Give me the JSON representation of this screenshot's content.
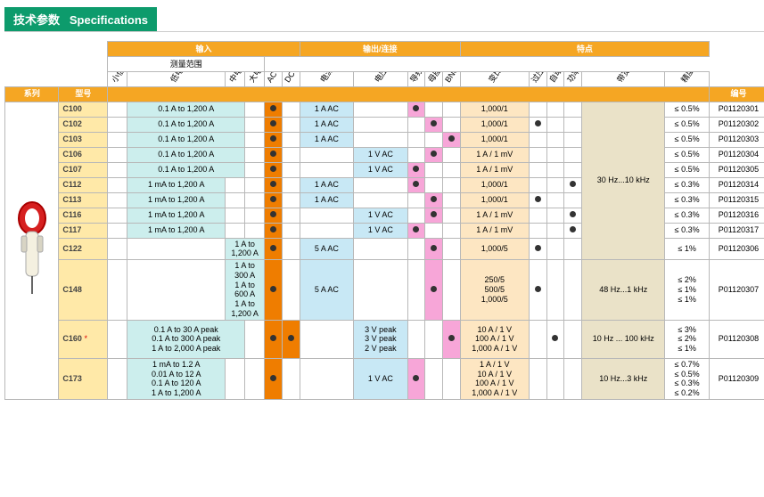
{
  "header": {
    "cn": "技术参数",
    "en": "Specifications"
  },
  "groups": {
    "input": "输入",
    "range": "测量范围",
    "output": "输出/连接",
    "features": "特点"
  },
  "diagHeaders": [
    "小信号电流",
    "低电流",
    "中电流",
    "大电流",
    "AC",
    "DC",
    "电流",
    "电压",
    "导线+安全插头 φ4mm",
    "母座 φ4mm",
    "BNC接头",
    "变比",
    "过压输出保护",
    "自动归零",
    "功率测量",
    "带宽",
    "精度"
  ],
  "rowHeaders": {
    "series": "系列",
    "model": "型号",
    "code": "编号"
  },
  "rows": [
    {
      "model": "C100",
      "range": "0.1 A to 1,200 A",
      "rc": 2,
      "ac": 1,
      "dc": 0,
      "cur": "1 A AC",
      "volt": "",
      "p1": 1,
      "p2": 0,
      "p3": 0,
      "ratio": "1,000/1",
      "ov": 0,
      "az": 0,
      "pw": 0,
      "band": "",
      "acc": "≤ 0.5%",
      "code": "P01120301"
    },
    {
      "model": "C102",
      "range": "0.1 A to 1,200 A",
      "rc": 2,
      "ac": 1,
      "dc": 0,
      "cur": "1 A AC",
      "volt": "",
      "p1": 0,
      "p2": 1,
      "p3": 0,
      "ratio": "1,000/1",
      "ov": 1,
      "az": 0,
      "pw": 0,
      "band": "",
      "acc": "≤ 0.5%",
      "code": "P01120302"
    },
    {
      "model": "C103",
      "range": "0.1 A to 1,200 A",
      "rc": 2,
      "ac": 1,
      "dc": 0,
      "cur": "1 A AC",
      "volt": "",
      "p1": 0,
      "p2": 0,
      "p3": 1,
      "ratio": "1,000/1",
      "ov": 0,
      "az": 0,
      "pw": 0,
      "band": "",
      "acc": "≤ 0.5%",
      "code": "P01120303"
    },
    {
      "model": "C106",
      "range": "0.1 A to 1,200 A",
      "rc": 2,
      "ac": 1,
      "dc": 0,
      "cur": "",
      "volt": "1 V AC",
      "p1": 0,
      "p2": 1,
      "p3": 0,
      "ratio": "1 A / 1 mV",
      "ov": 0,
      "az": 0,
      "pw": 0,
      "band": "",
      "acc": "≤ 0.5%",
      "code": "P01120304"
    },
    {
      "model": "C107",
      "range": "0.1 A to 1,200 A",
      "rc": 2,
      "ac": 1,
      "dc": 0,
      "cur": "",
      "volt": "1 V AC",
      "p1": 1,
      "p2": 0,
      "p3": 0,
      "ratio": "1 A / 1 mV",
      "ov": 0,
      "az": 0,
      "pw": 0,
      "band": "30 Hz...10 kHz",
      "acc": "≤ 0.5%",
      "code": "P01120305"
    },
    {
      "model": "C112",
      "range": "1 mA to 1,200 A",
      "rc": 1,
      "ac": 1,
      "dc": 0,
      "cur": "1 A AC",
      "volt": "",
      "p1": 1,
      "p2": 0,
      "p3": 0,
      "ratio": "1,000/1",
      "ov": 0,
      "az": 0,
      "pw": 1,
      "band": "",
      "acc": "≤ 0.3%",
      "code": "P01120314"
    },
    {
      "model": "C113",
      "range": "1 mA to 1,200 A",
      "rc": 1,
      "ac": 1,
      "dc": 0,
      "cur": "1 A AC",
      "volt": "",
      "p1": 0,
      "p2": 1,
      "p3": 0,
      "ratio": "1,000/1",
      "ov": 1,
      "az": 0,
      "pw": 0,
      "band": "",
      "acc": "≤ 0.3%",
      "code": "P01120315"
    },
    {
      "model": "C116",
      "range": "1 mA to 1,200 A",
      "rc": 1,
      "ac": 1,
      "dc": 0,
      "cur": "",
      "volt": "1 V AC",
      "p1": 0,
      "p2": 1,
      "p3": 0,
      "ratio": "1 A / 1 mV",
      "ov": 0,
      "az": 0,
      "pw": 1,
      "band": "",
      "acc": "≤ 0.3%",
      "code": "P01120316"
    },
    {
      "model": "C117",
      "range": "1 mA to 1,200 A",
      "rc": 1,
      "ac": 1,
      "dc": 0,
      "cur": "",
      "volt": "1 V AC",
      "p1": 1,
      "p2": 0,
      "p3": 0,
      "ratio": "1 A / 1 mV",
      "ov": 0,
      "az": 0,
      "pw": 1,
      "band": "",
      "acc": "≤ 0.3%",
      "code": "P01120317"
    },
    {
      "model": "C122",
      "range": "1 A to 1,200 A",
      "rc": 3,
      "ac": 1,
      "dc": 0,
      "cur": "5 A AC",
      "volt": "",
      "p1": 0,
      "p2": 1,
      "p3": 0,
      "ratio": "1,000/5",
      "ov": 1,
      "az": 0,
      "pw": 0,
      "band": "",
      "acc": "≤ 1%",
      "code": "P01120306"
    },
    {
      "model": "C148",
      "range": "1 A to 300 A\n1 A to 600 A\n1 A to 1,200 A",
      "rc": 3,
      "ac": 1,
      "dc": 0,
      "cur": "5 A AC",
      "volt": "",
      "p1": 0,
      "p2": 1,
      "p3": 0,
      "ratio": "250/5\n500/5\n1,000/5",
      "ov": 1,
      "az": 0,
      "pw": 0,
      "band": "48 Hz...1 kHz",
      "acc": "≤ 2%\n≤ 1%\n≤ 1%",
      "code": "P01120307",
      "tall": 1
    },
    {
      "model": "C160",
      "star": 1,
      "range": "0.1 A to 30 A peak\n0.1 A to 300 A peak\n1 A to 2,000 A peak",
      "rc": 2,
      "ac": 1,
      "dc": 1,
      "cur": "",
      "volt": "3 V peak\n3 V peak\n2 V peak",
      "p1": 0,
      "p2": 0,
      "p3": 1,
      "ratio": "10 A / 1 V\n100 A / 1 V\n1,000 A / 1 V",
      "ov": 0,
      "az": 1,
      "pw": 0,
      "band": "10 Hz ... 100 kHz",
      "acc": "≤ 3%\n≤ 2%\n≤ 1%",
      "code": "P01120308",
      "tall": 1
    },
    {
      "model": "C173",
      "range": "1 mA to 1.2 A\n0.01 A to 12 A\n0.1 A to 120 A\n1 A to 1,200 A",
      "rc": 1,
      "ac": 1,
      "dc": 0,
      "cur": "",
      "volt": "1 V AC",
      "p1": 1,
      "p2": 0,
      "p3": 0,
      "ratio": "1 A / 1 V\n10 A / 1 V\n100 A / 1 V\n1,000 A / 1 V",
      "ov": 0,
      "az": 0,
      "pw": 0,
      "band": "10 Hz...3 kHz",
      "acc": "≤ 0.7%\n≤ 0.5%\n≤ 0.3%\n≤ 0.2%",
      "code": "P01120309",
      "tall": 1
    }
  ],
  "bandSpan1": {
    "start": 0,
    "end": 9,
    "text": "30 Hz...10 kHz"
  }
}
